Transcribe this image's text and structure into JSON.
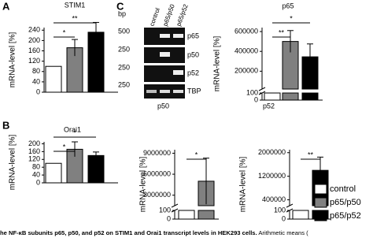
{
  "panel_labels": [
    "A",
    "B",
    "C"
  ],
  "gel": {
    "bp_label": "bp",
    "bp_markers": [
      "500",
      "250",
      "250",
      "250"
    ],
    "lanes": [
      "control",
      "p65/p50",
      "p65/p52"
    ],
    "rows": [
      "p65",
      "p50",
      "p52",
      "TBP"
    ]
  },
  "below_labels": [
    "p50",
    "p52"
  ],
  "legend": [
    {
      "name": "control",
      "color": "#ffffff"
    },
    {
      "name": "p65/p50",
      "color": "#808080"
    },
    {
      "name": "p65/p52",
      "color": "#000000"
    }
  ],
  "caption": {
    "bold": "he NF-κB subunits p65, p50, and p52 on STIM1 and Orai1 transcript levels in HEK293 cells.",
    "rest": "Arithmetic means ("
  },
  "chart_data": [
    {
      "type": "bar",
      "title": "STIM1",
      "ylabel": "mRNA-level [%]",
      "values": [
        100,
        172,
        232
      ],
      "errors": [
        null,
        32,
        38
      ],
      "colors": [
        "#ffffff",
        "#808080",
        "#000000"
      ],
      "ylim": [
        0,
        250
      ],
      "yticks": [
        0,
        40,
        80,
        120,
        160,
        200,
        240
      ],
      "annotations": [
        {
          "text": "*",
          "between": [
            0,
            1
          ]
        },
        {
          "text": "**",
          "between": [
            0,
            2
          ]
        }
      ]
    },
    {
      "type": "bar",
      "title": "Orai1",
      "ylabel": "mRNA-level [%]",
      "values": [
        100,
        172,
        140
      ],
      "errors": [
        null,
        38,
        18
      ],
      "colors": [
        "#ffffff",
        "#808080",
        "#000000"
      ],
      "ylim": [
        0,
        210
      ],
      "yticks": [
        0,
        40,
        80,
        120,
        160,
        200
      ],
      "annotations": [
        {
          "text": "*",
          "between": [
            0,
            1
          ]
        },
        {
          "text": "*",
          "between": [
            0,
            2
          ]
        }
      ]
    },
    {
      "type": "bar",
      "title": "p65",
      "ylabel": "mRNA-level [%]",
      "values": [
        100,
        500000,
        345000
      ],
      "errors": [
        null,
        110000,
        130000
      ],
      "colors": [
        "#ffffff",
        "#808080",
        "#000000"
      ],
      "ylim": [
        20000,
        640000
      ],
      "yticks": [
        200000,
        400000,
        600000
      ],
      "ylim_lower": [
        0,
        100
      ],
      "yticks_lower": [
        0,
        100
      ],
      "annotations": [
        {
          "text": "**",
          "between": [
            0,
            1
          ]
        },
        {
          "text": "*",
          "between": [
            0,
            2
          ]
        }
      ]
    },
    {
      "type": "bar",
      "ylabel": "mRNA-level [%]",
      "values": [
        100,
        5000000
      ],
      "errors": [
        null,
        3300000
      ],
      "colors": [
        "#ffffff",
        "#808080"
      ],
      "ylim": [
        1500000,
        9500000
      ],
      "yticks": [
        3000000,
        6000000,
        9000000
      ],
      "ylim_lower": [
        0,
        100
      ],
      "yticks_lower": [
        0,
        100
      ],
      "annotations": [
        {
          "text": "*",
          "between": [
            0,
            1
          ]
        }
      ]
    },
    {
      "type": "bar",
      "ylabel": "mRNA-level [%]",
      "values": [
        100,
        1400000
      ],
      "errors": [
        null,
        450000
      ],
      "colors": [
        "#ffffff",
        "#000000"
      ],
      "ylim": [
        200000,
        2100000
      ],
      "yticks": [
        400000,
        1200000,
        2000000
      ],
      "ylim_lower": [
        0,
        100
      ],
      "yticks_lower": [
        0,
        100
      ],
      "annotations": [
        {
          "text": "**",
          "between": [
            0,
            1
          ]
        }
      ]
    }
  ]
}
